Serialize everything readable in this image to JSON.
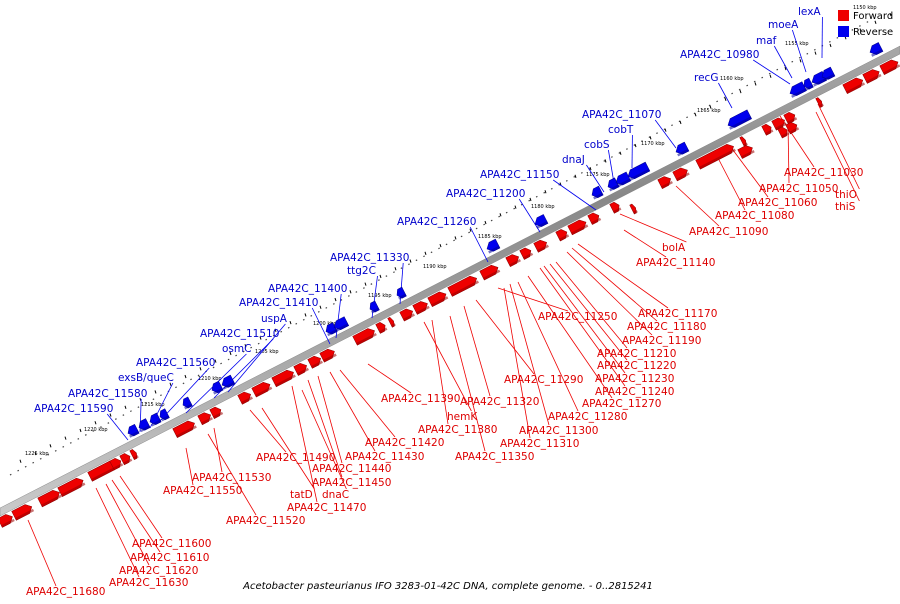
{
  "caption": "Acetobacter pasteurianus IFO 3283-01-42C DNA, complete genome. - 0..2815241",
  "legend": [
    {
      "label": "Forward",
      "color": "#ee0000"
    },
    {
      "label": "Reverse",
      "color": "#0000ee"
    }
  ],
  "colors": {
    "forward": "#ee0000",
    "reverse": "#0000ee",
    "backbone": "#999999"
  },
  "ticks": [
    "1150 kbp",
    "1155 kbp",
    "1160 kbp",
    "1165 kbp",
    "1170 kbp",
    "1175 kbp",
    "1180 kbp",
    "1185 kbp",
    "1190 kbp",
    "1195 kbp",
    "1200 kbp",
    "1205 kbp",
    "1210 kbp",
    "1215 kbp",
    "1220 kbp",
    "1225 kbp"
  ],
  "reverse_labels": [
    "lexA",
    "moeA",
    "maf",
    "APA42C_10980",
    "recG",
    "APA42C_11070",
    "cobT",
    "cobS",
    "dnaJ",
    "APA42C_11150",
    "APA42C_11200",
    "APA42C_11260",
    "APA42C_11330",
    "ttg2C",
    "APA42C_11400",
    "APA42C_11410",
    "uspA",
    "APA42C_11510",
    "osmC",
    "APA42C_11560",
    "exsB/queC",
    "APA42C_11580",
    "APA42C_11590"
  ],
  "forward_labels": [
    "APA42C_11030",
    "APA42C_11050",
    "thiO",
    "thiS",
    "APA42C_11060",
    "APA42C_11080",
    "APA42C_11090",
    "bolA",
    "APA42C_11140",
    "APA42C_11170",
    "APA42C_11180",
    "APA42C_11190",
    "APA42C_11250",
    "APA42C_11210",
    "APA42C_11220",
    "APA42C_11230",
    "APA42C_11240",
    "APA42C_11270",
    "APA42C_11280",
    "APA42C_11290",
    "APA42C_11300",
    "APA42C_11310",
    "APA42C_11320",
    "APA42C_11350",
    "APA42C_11380",
    "hemK",
    "APA42C_11390",
    "APA42C_11420",
    "APA42C_11430",
    "APA42C_11440",
    "APA42C_11450",
    "APA42C_11470",
    "dnaC",
    "tatD",
    "APA42C_11490",
    "APA42C_11530",
    "APA42C_11550",
    "APA42C_11520",
    "APA42C_11600",
    "APA42C_11610",
    "APA42C_11620",
    "APA42C_11630",
    "APA42C_11680"
  ]
}
